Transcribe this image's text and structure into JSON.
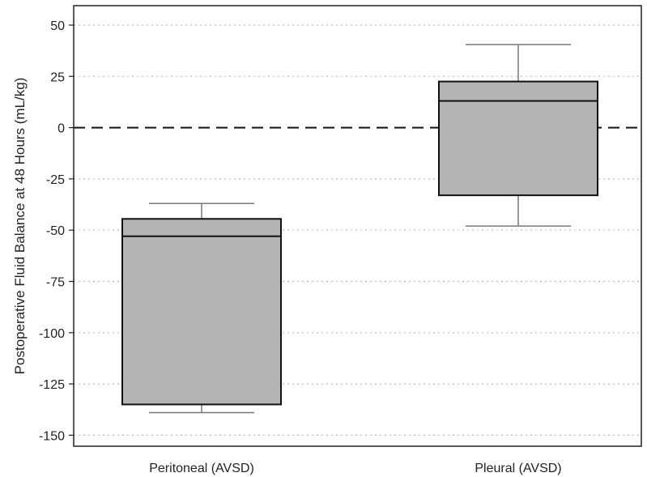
{
  "chart_data": {
    "type": "box",
    "ylabel": "Postoperative Fluid Balance at 48 Hours (mL/kg)",
    "ylim": [
      -155,
      58
    ],
    "yticks": [
      50,
      25,
      0,
      -25,
      -50,
      -75,
      -100,
      -125,
      -150
    ],
    "ytick_labels": [
      "50",
      "25",
      "0",
      "-25",
      "-50",
      "-75",
      "-100",
      "-125",
      "-150"
    ],
    "grid": "horizontal dotted",
    "reference_line": {
      "y": 0,
      "style": "dashed"
    },
    "categories": [
      "Peritoneal (AVSD)",
      "Pleural (AVSD)"
    ],
    "boxes": [
      {
        "category": "Peritoneal (AVSD)",
        "whisker_low": -139,
        "q1": -135,
        "median": -53,
        "q3": -44.5,
        "whisker_high": -37
      },
      {
        "category": "Pleural (AVSD)",
        "whisker_low": -48,
        "q1": -33,
        "median": 13,
        "q3": 22.5,
        "whisker_high": 40.5
      }
    ],
    "colors": {
      "box_fill": "#b3b3b3",
      "box_stroke": "#111111",
      "whisker": "#777777",
      "grid": "#bbbbbb"
    }
  }
}
